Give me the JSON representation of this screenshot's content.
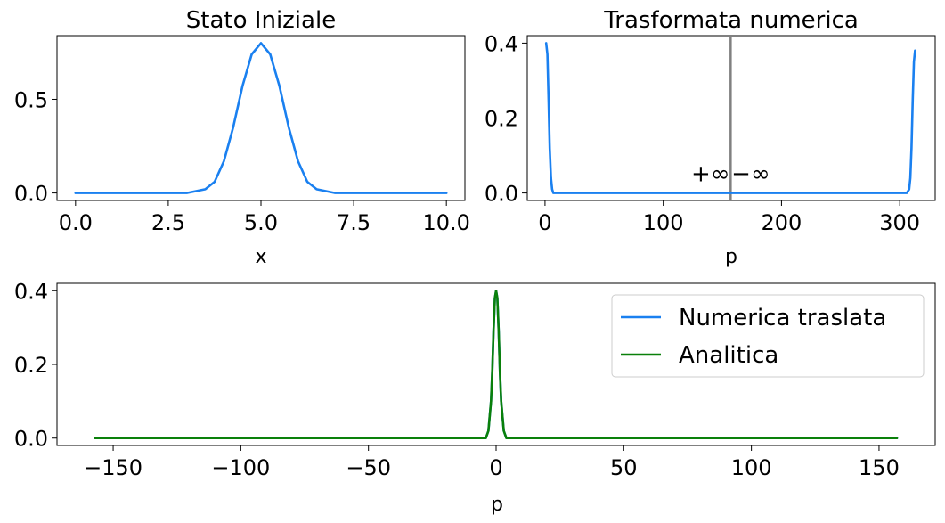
{
  "chart_data": [
    {
      "type": "line",
      "title": "Stato Iniziale",
      "xlabel": "x",
      "ylabel": "",
      "xlim": [
        -0.5,
        10.5
      ],
      "ylim": [
        -0.04,
        0.84
      ],
      "xticks": [
        0.0,
        2.5,
        5.0,
        7.5,
        10.0
      ],
      "xtick_labels": [
        "0.0",
        "2.5",
        "5.0",
        "7.5",
        "10.0"
      ],
      "yticks": [
        0.0,
        0.5
      ],
      "ytick_labels": [
        "0.0",
        "0.5"
      ],
      "grid": false,
      "series": [
        {
          "color": "#1a80f0",
          "x": [
            0.0,
            3.0,
            3.5,
            3.75,
            4.0,
            4.25,
            4.5,
            4.75,
            5.0,
            5.25,
            5.5,
            5.75,
            6.0,
            6.25,
            6.5,
            7.0,
            10.0
          ],
          "y": [
            0.0,
            0.0,
            0.02,
            0.06,
            0.17,
            0.35,
            0.57,
            0.74,
            0.8,
            0.74,
            0.57,
            0.35,
            0.17,
            0.06,
            0.02,
            0.0,
            0.0
          ]
        }
      ]
    },
    {
      "type": "line",
      "title": "Trasformata numerica",
      "xlabel": "p",
      "ylabel": "",
      "xlim": [
        -15,
        330
      ],
      "ylim": [
        -0.02,
        0.42
      ],
      "xticks": [
        0,
        100,
        200,
        300
      ],
      "xtick_labels": [
        "0",
        "100",
        "200",
        "300"
      ],
      "yticks": [
        0.0,
        0.2,
        0.4
      ],
      "ytick_labels": [
        "0.0",
        "0.2",
        "0.4"
      ],
      "grid": false,
      "vline": {
        "x": 157,
        "color": "#808080"
      },
      "annotations": [
        {
          "text": "+∞",
          "x": 140,
          "y": 0.05
        },
        {
          "text": "−∞",
          "x": 174,
          "y": 0.05
        }
      ],
      "series": [
        {
          "color": "#1a80f0",
          "x": [
            1,
            2,
            3,
            4,
            5,
            6,
            7,
            8,
            20,
            300,
            306,
            308,
            309,
            310,
            311,
            312,
            313
          ],
          "y": [
            0.4,
            0.37,
            0.25,
            0.12,
            0.04,
            0.01,
            0.0,
            0.0,
            0.0,
            0.0,
            0.0,
            0.01,
            0.04,
            0.12,
            0.25,
            0.35,
            0.38
          ]
        }
      ]
    },
    {
      "type": "line",
      "title": "",
      "xlabel": "p",
      "ylabel": "",
      "xlim": [
        -172,
        172
      ],
      "ylim": [
        -0.02,
        0.42
      ],
      "xticks": [
        -150,
        -100,
        -50,
        0,
        50,
        100,
        150
      ],
      "xtick_labels": [
        "−150",
        "−100",
        "−50",
        "0",
        "50",
        "100",
        "150"
      ],
      "yticks": [
        0.0,
        0.2,
        0.4
      ],
      "ytick_labels": [
        "0.0",
        "0.2",
        "0.4"
      ],
      "grid": false,
      "legend": "top-right",
      "series": [
        {
          "name": "Numerica traslata",
          "color": "#1a80f0",
          "x": [
            -157,
            -6,
            -4,
            -3,
            -2,
            -1.5,
            -1,
            -0.5,
            0,
            0.5,
            1,
            1.5,
            2,
            3,
            4,
            6,
            157
          ],
          "y": [
            0.0,
            0.0,
            0.0,
            0.02,
            0.1,
            0.18,
            0.29,
            0.38,
            0.4,
            0.38,
            0.29,
            0.18,
            0.1,
            0.02,
            0.0,
            0.0,
            0.0
          ]
        },
        {
          "name": "Analitica",
          "color": "#0a800a",
          "x": [
            -157,
            -6,
            -4,
            -3,
            -2,
            -1.5,
            -1,
            -0.5,
            0,
            0.5,
            1,
            1.5,
            2,
            3,
            4,
            6,
            157
          ],
          "y": [
            0.0,
            0.0,
            0.0,
            0.02,
            0.1,
            0.18,
            0.29,
            0.38,
            0.4,
            0.38,
            0.29,
            0.18,
            0.1,
            0.02,
            0.0,
            0.0,
            0.0
          ]
        }
      ]
    }
  ]
}
